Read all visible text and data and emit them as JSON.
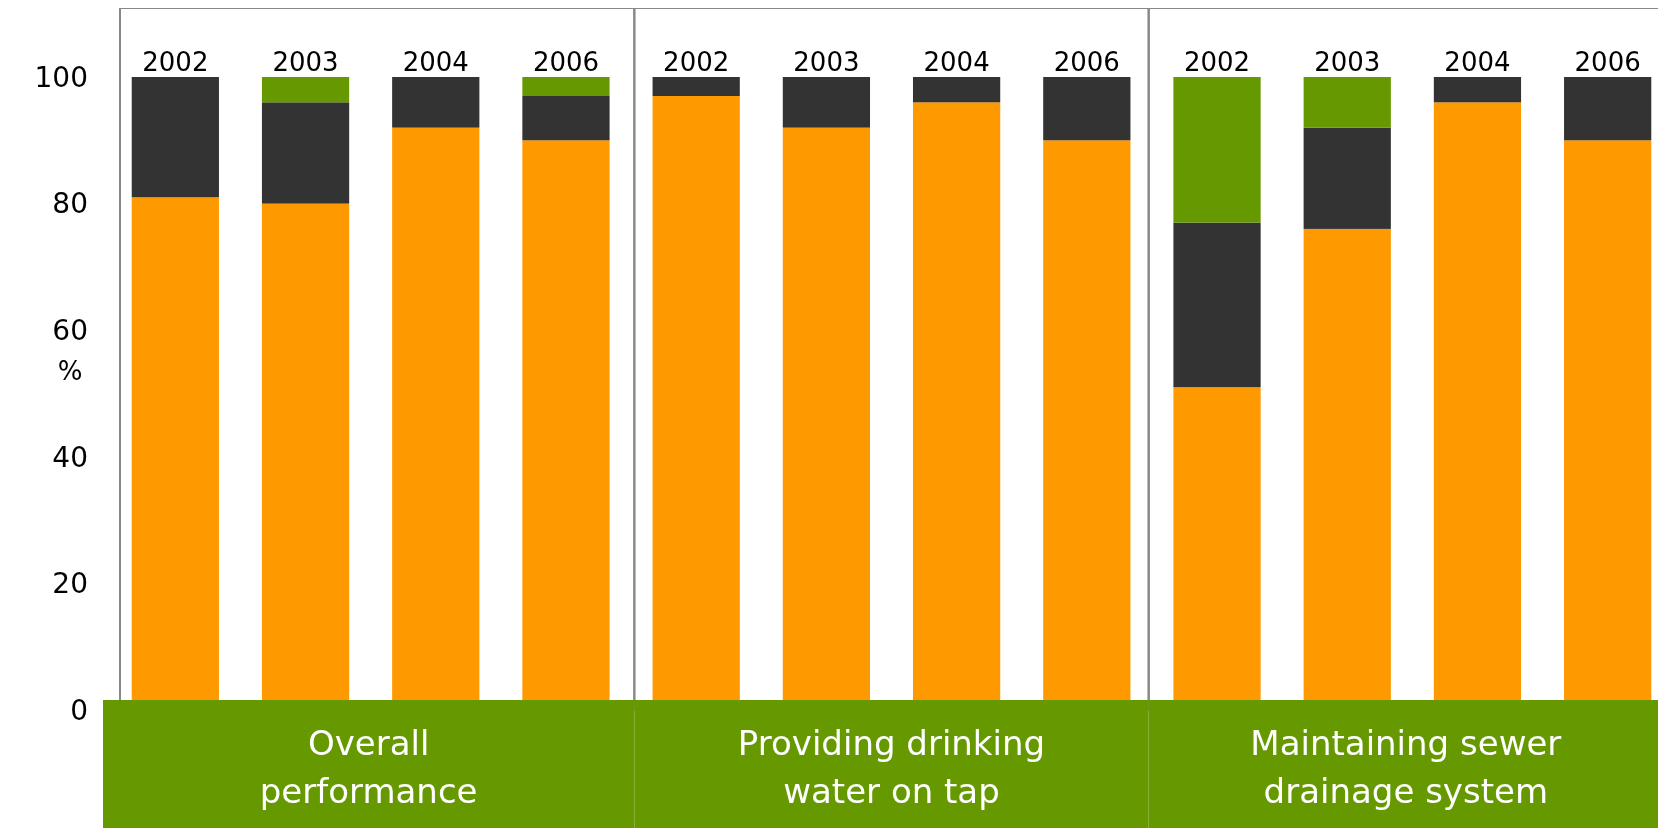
{
  "chart_data": {
    "type": "bar",
    "stacked": true,
    "ylabel": "%",
    "categories": [
      "2002",
      "2003",
      "2004",
      "2006",
      "2002",
      "2003",
      "2004",
      "2006",
      "2002",
      "2003",
      "2004",
      "2006"
    ],
    "series": [
      {
        "color": "#ff9900",
        "values": [
          81,
          80,
          92,
          90,
          97,
          92,
          96,
          90,
          51,
          76,
          96,
          90
        ]
      },
      {
        "color": "#333333",
        "values": [
          19,
          16,
          8,
          7,
          3,
          8,
          4,
          10,
          26,
          16,
          4,
          10
        ]
      },
      {
        "color": "#669900",
        "values": [
          0,
          4,
          0,
          3,
          0,
          0,
          0,
          0,
          23,
          8,
          0,
          0
        ]
      }
    ],
    "ylim": [
      0,
      100
    ],
    "yticks": [
      0,
      20,
      40,
      60,
      80,
      100
    ],
    "grid": false,
    "annotations": [
      "Overall performance",
      "Providing drinking water on tap",
      "Maintaining sewer drainage system"
    ]
  }
}
